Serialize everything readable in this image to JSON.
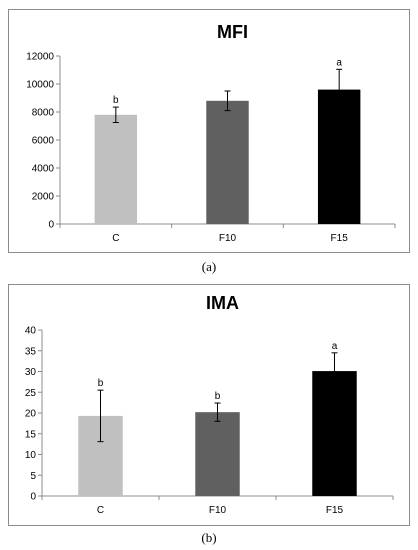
{
  "chart_data": [
    {
      "type": "bar",
      "title": "MFI",
      "categories": [
        "C",
        "F10",
        "F15"
      ],
      "values": [
        7800,
        8800,
        9600
      ],
      "errors": [
        550,
        700,
        1450
      ],
      "labels": [
        "b",
        "",
        "a"
      ],
      "colors": [
        "#c0c0c0",
        "#606060",
        "#000000"
      ],
      "ylim": [
        0,
        12000
      ],
      "yticks": [
        "0",
        "2000",
        "4000",
        "6000",
        "8000",
        "10000",
        "12000"
      ],
      "xlabel": "",
      "ylabel": "",
      "grid": false,
      "caption": "(a)"
    },
    {
      "type": "bar",
      "title": "IMA",
      "categories": [
        "C",
        "F10",
        "F15"
      ],
      "values": [
        19.3,
        20.2,
        30.1
      ],
      "errors": [
        6.2,
        2.2,
        4.4
      ],
      "labels": [
        "b",
        "b",
        "a"
      ],
      "colors": [
        "#c0c0c0",
        "#606060",
        "#000000"
      ],
      "ylim": [
        0,
        40
      ],
      "yticks": [
        "0",
        "5",
        "10",
        "15",
        "20",
        "25",
        "30",
        "35",
        "40"
      ],
      "xlabel": "",
      "ylabel": "",
      "grid": false,
      "caption": "(b)"
    }
  ]
}
